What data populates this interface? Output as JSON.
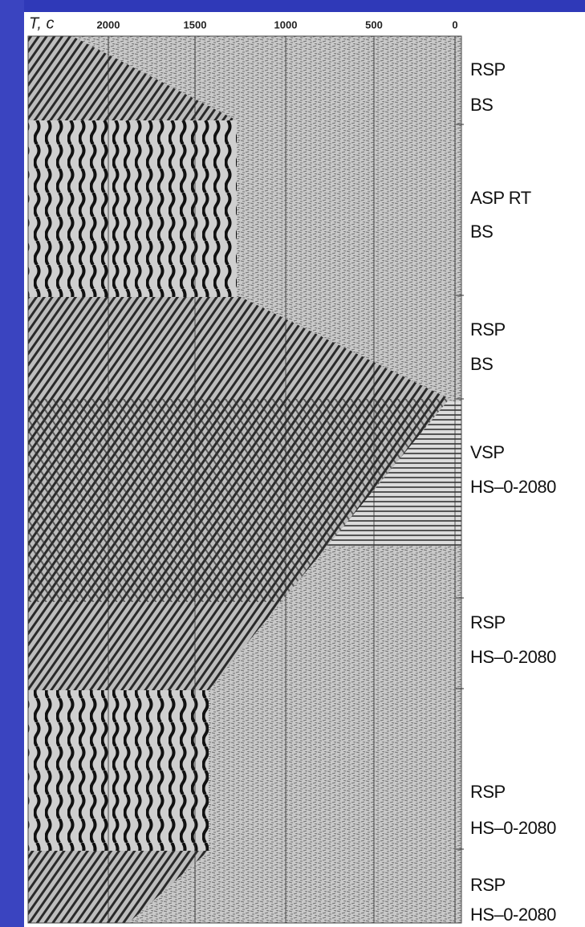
{
  "axis": {
    "label": "T, c",
    "ticks": [
      "2000",
      "1500",
      "1000",
      "500",
      "0"
    ]
  },
  "sections": [
    {
      "lines": [
        "RSP",
        "BS"
      ]
    },
    {
      "lines": [
        "ASP RT",
        "BS"
      ]
    },
    {
      "lines": [
        "RSP",
        "BS"
      ]
    },
    {
      "lines": [
        "VSP",
        "HS–0-2080"
      ]
    },
    {
      "lines": [
        "RSP",
        "HS–0-2080"
      ]
    },
    {
      "lines": [
        "RSP",
        "HS–0-2080"
      ]
    },
    {
      "lines": [
        "RSP",
        "HS–0-2080"
      ]
    }
  ]
}
